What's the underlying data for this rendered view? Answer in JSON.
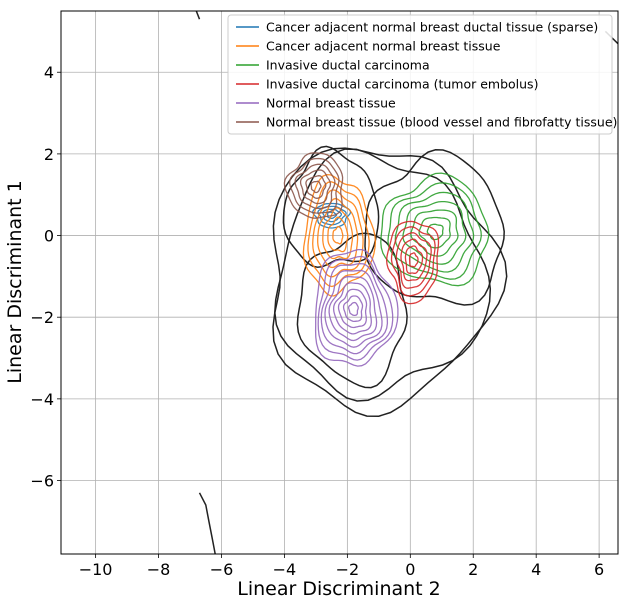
{
  "chart_data": {
    "type": "contour",
    "xlabel": "Linear Discriminant 2",
    "ylabel": "Linear Discriminant 1",
    "xlim": [
      -11.1,
      6.6
    ],
    "ylim": [
      -7.8,
      5.5
    ],
    "xticks": [
      -10,
      -8,
      -6,
      -4,
      -2,
      0,
      2,
      4,
      6
    ],
    "yticks": [
      -6,
      -4,
      -2,
      0,
      2,
      4
    ],
    "xtick_labels": [
      "−10",
      "−8",
      "−6",
      "−4",
      "−2",
      "0",
      "2",
      "4",
      "6"
    ],
    "ytick_labels": [
      "−6",
      "−4",
      "−2",
      "0",
      "2",
      "4"
    ],
    "grid": true,
    "legend_position": "top-right",
    "series": [
      {
        "name": "Cancer adjacent normal breast ductal tissue (sparse)",
        "color": "#1f77b4",
        "center": [
          -2.5,
          0.5
        ],
        "radii": [
          0.55,
          0.3
        ],
        "levels": 4
      },
      {
        "name": "Cancer adjacent normal breast tissue",
        "color": "#ff7f0e",
        "center": [
          -2.3,
          0.0
        ],
        "radii": [
          1.1,
          1.4
        ],
        "levels": 7
      },
      {
        "name": "Invasive ductal carcinoma",
        "color": "#2ca02c",
        "center": [
          0.8,
          0.1
        ],
        "radii": [
          1.7,
          1.3
        ],
        "levels": 7
      },
      {
        "name": "Invasive ductal carcinoma (tumor embolus)",
        "color": "#d62728",
        "center": [
          0.1,
          -0.6
        ],
        "radii": [
          0.8,
          1.0
        ],
        "levels": 6
      },
      {
        "name": "Normal breast tissue",
        "color": "#9467bd",
        "center": [
          -1.8,
          -1.8
        ],
        "radii": [
          1.3,
          1.4
        ],
        "levels": 9
      },
      {
        "name": "Normal breast tissue (blood vessel and fibrofatty tissue)",
        "color": "#8c564b",
        "center": [
          -3.0,
          1.2
        ],
        "radii": [
          0.9,
          0.8
        ],
        "levels": 6
      }
    ],
    "overall_density": {
      "color": "#222222",
      "levels": [
        {
          "center": [
            -1.0,
            -1.0
          ],
          "radii": [
            3.6,
            3.2
          ]
        },
        {
          "center": [
            -1.0,
            -1.0
          ],
          "radii": [
            3.3,
            2.9
          ]
        },
        {
          "center": [
            -2.5,
            0.6
          ],
          "radii": [
            1.5,
            1.4
          ]
        },
        {
          "center": [
            0.8,
            0.1
          ],
          "radii": [
            2.2,
            1.8
          ]
        },
        {
          "center": [
            -1.8,
            -1.8
          ],
          "radii": [
            1.7,
            1.8
          ]
        }
      ],
      "edge_curves": [
        [
          [
            -6.7,
            5.3
          ],
          [
            -6.8,
            5.5
          ]
        ],
        [
          [
            6.2,
            5.0
          ],
          [
            6.6,
            4.7
          ]
        ],
        [
          [
            -6.7,
            -6.3
          ],
          [
            -6.5,
            -6.6
          ],
          [
            -6.4,
            -7.0
          ],
          [
            -6.3,
            -7.4
          ],
          [
            -6.2,
            -7.8
          ]
        ]
      ]
    }
  }
}
